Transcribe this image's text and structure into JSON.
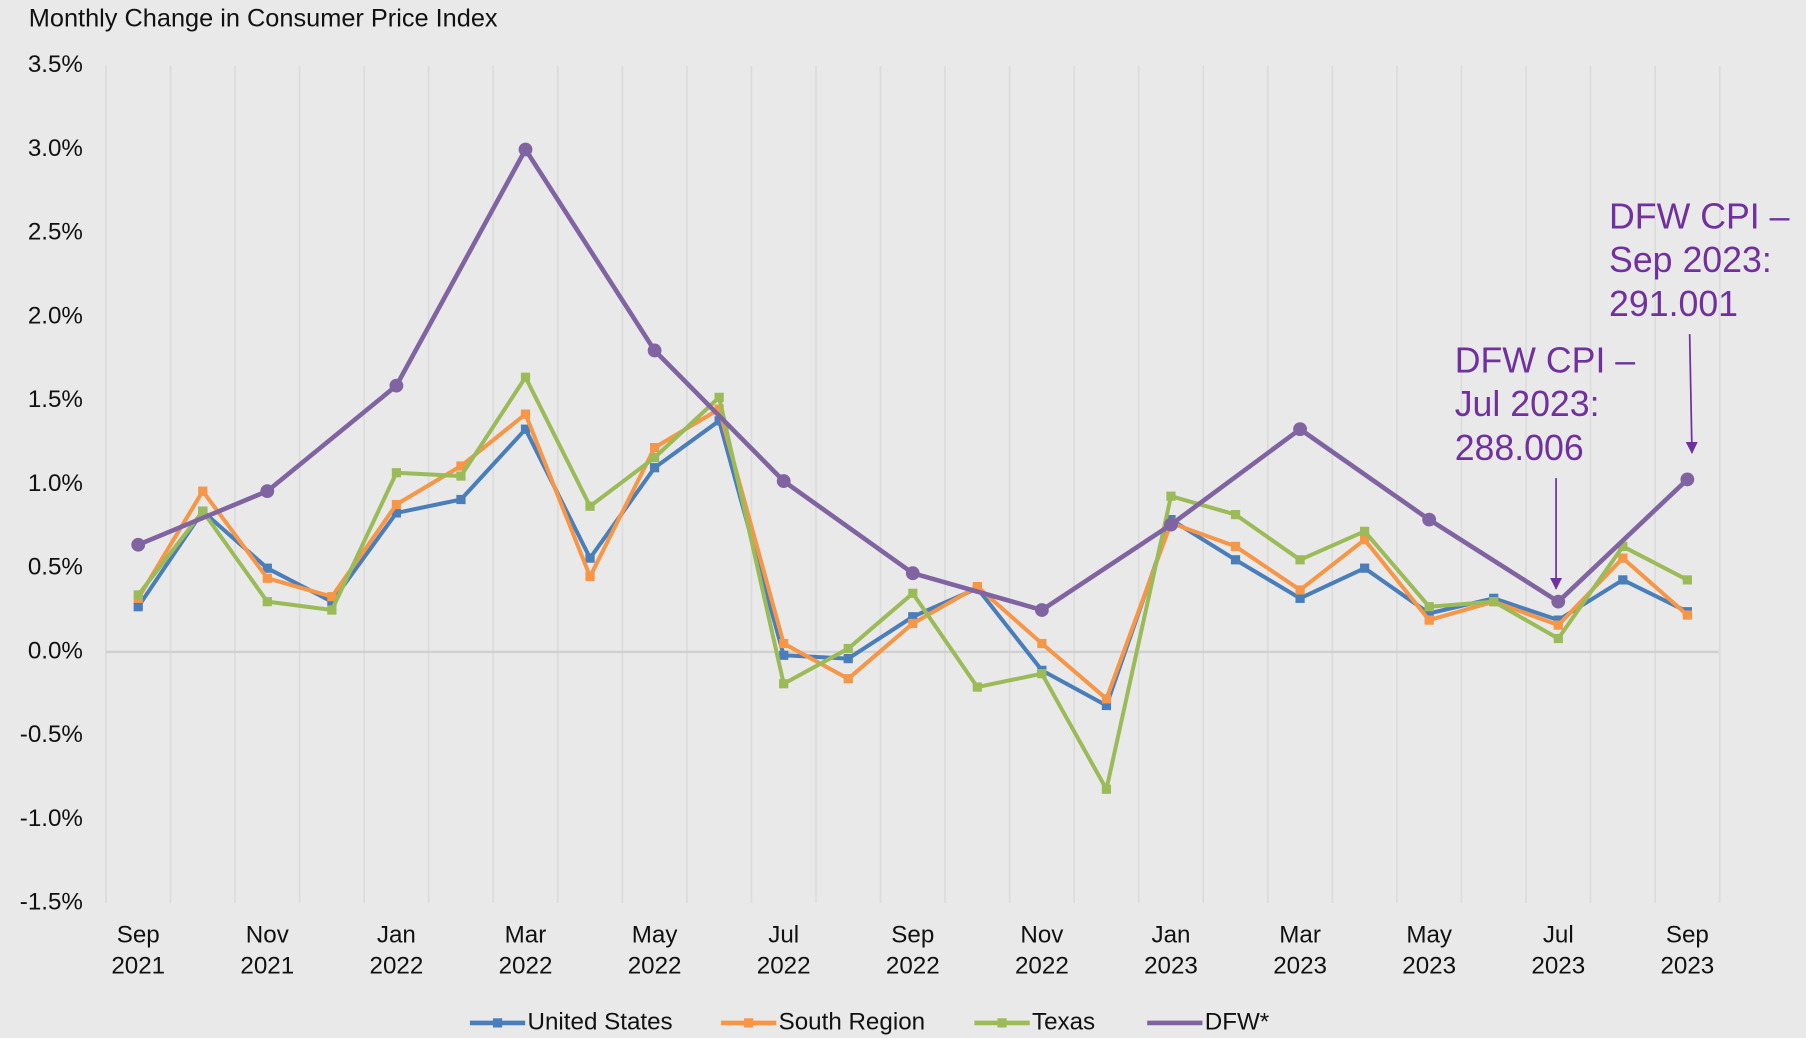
{
  "chart_data": {
    "type": "line",
    "title": "Monthly Change in Consumer Price Index",
    "categories": [
      "Sep 2021",
      null,
      "Nov 2021",
      null,
      "Jan 2022",
      null,
      "Mar 2022",
      null,
      "May 2022",
      null,
      "Jul 2022",
      null,
      "Sep 2022",
      null,
      "Nov 2022",
      null,
      "Jan 2023",
      null,
      "Mar 2023",
      null,
      "May 2023",
      null,
      "Jul 2023",
      null,
      "Sep 2023"
    ],
    "ylim": [
      -1.5,
      3.5
    ],
    "yticks": [
      {
        "value": -1.5,
        "label": "-1.5%"
      },
      {
        "value": -1.0,
        "label": "-1.0%"
      },
      {
        "value": -0.5,
        "label": "-0.5%"
      },
      {
        "value": 0,
        "label": "0.0%"
      },
      {
        "value": 0.5,
        "label": "0.5%"
      },
      {
        "value": 1.0,
        "label": "1.0%"
      },
      {
        "value": 1.5,
        "label": "1.5%"
      },
      {
        "value": 2.0,
        "label": "2.0%"
      },
      {
        "value": 2.5,
        "label": "2.5%"
      },
      {
        "value": 3.0,
        "label": "3.0%"
      },
      {
        "value": 3.5,
        "label": "3.5%"
      }
    ],
    "grid": true,
    "legend": "bottom",
    "series": [
      {
        "name": "United States",
        "color": "#4a7ebb",
        "marker": "square",
        "values": [
          0.27,
          0.84,
          0.5,
          0.3,
          0.83,
          0.91,
          1.33,
          0.56,
          1.1,
          1.38,
          -0.02,
          -0.04,
          0.21,
          0.38,
          -0.11,
          -0.32,
          0.79,
          0.55,
          0.32,
          0.5,
          0.23,
          0.32,
          0.19,
          0.43,
          0.24
        ]
      },
      {
        "name": "South Region",
        "color": "#f79646",
        "marker": "square",
        "values": [
          0.32,
          0.96,
          0.44,
          0.33,
          0.88,
          1.11,
          1.42,
          0.45,
          1.22,
          1.45,
          0.05,
          -0.16,
          0.17,
          0.39,
          0.05,
          -0.28,
          0.77,
          0.63,
          0.37,
          0.67,
          0.19,
          0.3,
          0.16,
          0.56,
          0.22
        ]
      },
      {
        "name": "Texas",
        "color": "#9bbb59",
        "marker": "square",
        "values": [
          0.34,
          0.84,
          0.3,
          0.25,
          1.07,
          1.05,
          1.64,
          0.87,
          1.16,
          1.52,
          -0.19,
          0.02,
          0.35,
          -0.21,
          -0.13,
          -0.82,
          0.93,
          0.82,
          0.55,
          0.72,
          0.27,
          0.3,
          0.08,
          0.63,
          0.43
        ]
      },
      {
        "name": "DFW*",
        "color": "#8064a2",
        "marker": "circle",
        "span_gaps": true,
        "values": [
          0.64,
          null,
          0.96,
          null,
          1.59,
          null,
          3.0,
          null,
          1.8,
          null,
          1.02,
          null,
          0.47,
          null,
          0.25,
          null,
          0.76,
          null,
          1.33,
          null,
          0.79,
          null,
          0.3,
          null,
          1.03
        ]
      }
    ],
    "annotations": [
      {
        "lines": [
          "DFW CPI –",
          "Jul 2023:",
          "288.006"
        ]
      },
      {
        "lines": [
          "DFW CPI –",
          "Sep 2023:",
          "291.001"
        ]
      }
    ]
  }
}
